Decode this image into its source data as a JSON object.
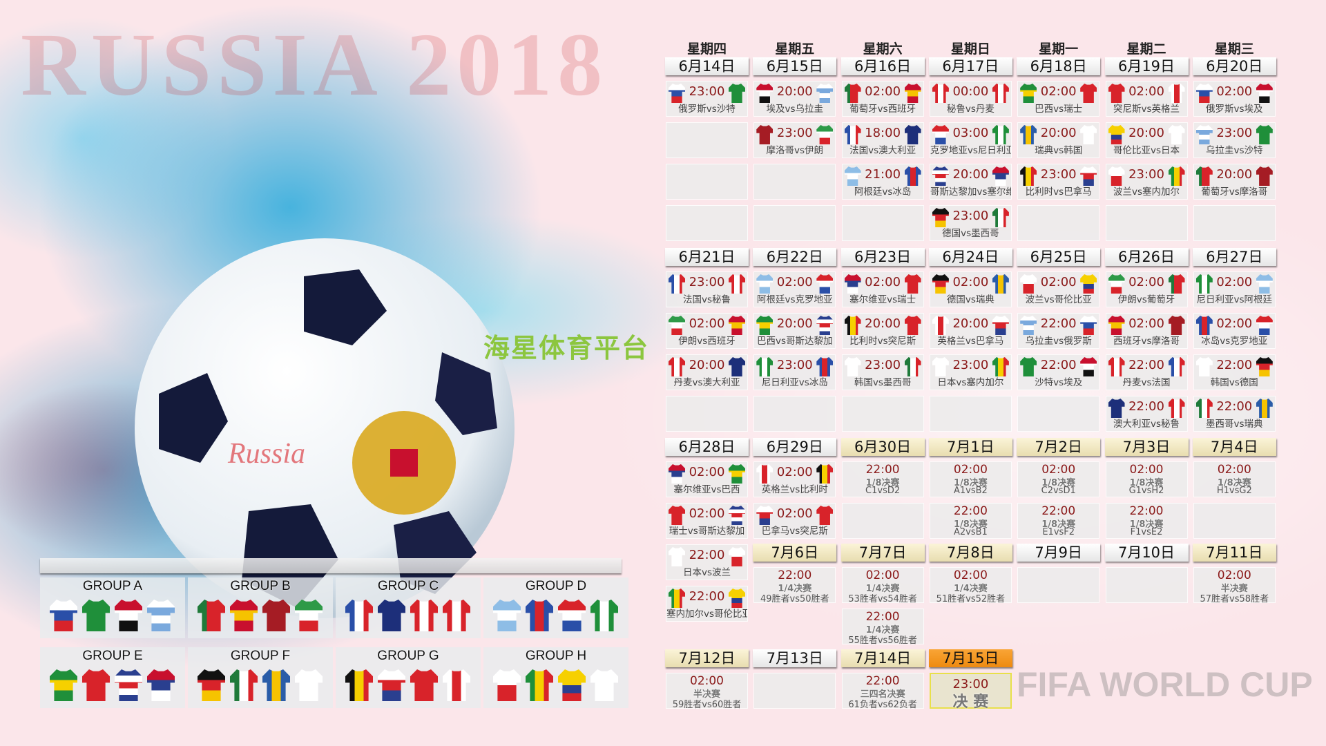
{
  "watermarks": {
    "green": "海星体育平台",
    "fifa": "FIFA WORLD CUP",
    "russia": "RUSSIA 2018"
  },
  "weekdays": [
    "星期四",
    "星期五",
    "星期六",
    "星期日",
    "星期一",
    "星期二",
    "星期三"
  ],
  "colors": {
    "time": "#8b1a1a",
    "knockout_header": "#efe6c0",
    "final_header": "#f39a1c",
    "background": "#fbe6ea"
  },
  "team_colors": {
    "俄罗斯": {
      "d": "h",
      "c": [
        "#ffffff",
        "#2a4fa8",
        "#d8232a"
      ]
    },
    "沙特": {
      "d": "h",
      "c": [
        "#1f8f3a"
      ]
    },
    "埃及": {
      "d": "h",
      "c": [
        "#c8102e",
        "#ffffff",
        "#111111"
      ]
    },
    "乌拉圭": {
      "d": "h",
      "c": [
        "#ffffff",
        "#7aa9dd",
        "#ffffff",
        "#7aa9dd"
      ]
    },
    "葡萄牙": {
      "d": "v",
      "c": [
        "#1f7a3a",
        "#d8232a",
        "#d8232a"
      ]
    },
    "西班牙": {
      "d": "h",
      "c": [
        "#c8102e",
        "#f6c300",
        "#c8102e"
      ]
    },
    "摩洛哥": {
      "d": "h",
      "c": [
        "#a51c24"
      ]
    },
    "伊朗": {
      "d": "h",
      "c": [
        "#2e9a48",
        "#ffffff",
        "#d8232a"
      ]
    },
    "法国": {
      "d": "v",
      "c": [
        "#2a4fa8",
        "#ffffff",
        "#d8232a"
      ]
    },
    "澳大利亚": {
      "d": "h",
      "c": [
        "#1d2f7a"
      ]
    },
    "秘鲁": {
      "d": "v",
      "c": [
        "#d8232a",
        "#ffffff",
        "#d8232a"
      ]
    },
    "丹麦": {
      "d": "v",
      "c": [
        "#d8232a",
        "#ffffff",
        "#d8232a"
      ]
    },
    "阿根廷": {
      "d": "h",
      "c": [
        "#8ebde6",
        "#ffffff",
        "#8ebde6"
      ]
    },
    "冰岛": {
      "d": "v",
      "c": [
        "#2a4fa8",
        "#d8232a",
        "#2a4fa8"
      ]
    },
    "克罗地亚": {
      "d": "h",
      "c": [
        "#d8232a",
        "#ffffff",
        "#2a4fa8"
      ]
    },
    "尼日利亚": {
      "d": "v",
      "c": [
        "#1f8f3a",
        "#ffffff",
        "#1f8f3a"
      ]
    },
    "巴西": {
      "d": "h",
      "c": [
        "#1f8f3a",
        "#f6d000",
        "#1f8f3a"
      ]
    },
    "瑞士": {
      "d": "h",
      "c": [
        "#d8232a"
      ]
    },
    "哥斯达黎加": {
      "d": "h",
      "c": [
        "#2a3f8f",
        "#ffffff",
        "#d8232a",
        "#ffffff",
        "#2a3f8f"
      ]
    },
    "塞尔维亚": {
      "d": "h",
      "c": [
        "#c8102e",
        "#2a3f8f",
        "#ffffff"
      ]
    },
    "德国": {
      "d": "h",
      "c": [
        "#111111",
        "#d8232a",
        "#f6c300"
      ]
    },
    "墨西哥": {
      "d": "v",
      "c": [
        "#1f7a3a",
        "#ffffff",
        "#d8232a"
      ]
    },
    "瑞典": {
      "d": "v",
      "c": [
        "#2a5ca8",
        "#f6c300",
        "#2a5ca8"
      ]
    },
    "韩国": {
      "d": "h",
      "c": [
        "#ffffff"
      ]
    },
    "比利时": {
      "d": "v",
      "c": [
        "#111111",
        "#f6d000",
        "#d8232a"
      ]
    },
    "巴拿马": {
      "d": "h",
      "c": [
        "#ffffff",
        "#d8232a",
        "#2a3f8f"
      ]
    },
    "突尼斯": {
      "d": "h",
      "c": [
        "#d8232a"
      ]
    },
    "英格兰": {
      "d": "v",
      "c": [
        "#ffffff",
        "#d8232a",
        "#ffffff"
      ]
    },
    "波兰": {
      "d": "h",
      "c": [
        "#ffffff",
        "#d8232a"
      ]
    },
    "塞内加尔": {
      "d": "v",
      "c": [
        "#1f8f3a",
        "#f6d000",
        "#d8232a"
      ]
    },
    "哥伦比亚": {
      "d": "h",
      "c": [
        "#f6d000",
        "#f6d000",
        "#2a3f8f",
        "#d8232a"
      ]
    },
    "日本": {
      "d": "h",
      "c": [
        "#ffffff"
      ]
    }
  },
  "days": [
    {
      "date": "6月14日",
      "style": "group",
      "matches": [
        {
          "time": "23:00",
          "home": "俄罗斯",
          "away": "沙特",
          "label": "俄罗斯vs沙特"
        }
      ]
    },
    {
      "date": "6月15日",
      "style": "group",
      "matches": [
        {
          "time": "20:00",
          "home": "埃及",
          "away": "乌拉圭",
          "label": "埃及vs乌拉圭"
        },
        {
          "time": "23:00",
          "home": "摩洛哥",
          "away": "伊朗",
          "label": "摩洛哥vs伊朗"
        }
      ]
    },
    {
      "date": "6月16日",
      "style": "group",
      "matches": [
        {
          "time": "02:00",
          "home": "葡萄牙",
          "away": "西班牙",
          "label": "葡萄牙vs西班牙"
        },
        {
          "time": "18:00",
          "home": "法国",
          "away": "澳大利亚",
          "label": "法国vs澳大利亚"
        },
        {
          "time": "21:00",
          "home": "阿根廷",
          "away": "冰岛",
          "label": "阿根廷vs冰岛"
        }
      ]
    },
    {
      "date": "6月17日",
      "style": "group",
      "matches": [
        {
          "time": "00:00",
          "home": "秘鲁",
          "away": "丹麦",
          "label": "秘鲁vs丹麦"
        },
        {
          "time": "03:00",
          "home": "克罗地亚",
          "away": "尼日利亚",
          "label": "克罗地亚vs尼日利亚"
        },
        {
          "time": "20:00",
          "home": "哥斯达黎加",
          "away": "塞尔维亚",
          "label": "哥斯达黎加vs塞尔维亚"
        },
        {
          "time": "23:00",
          "home": "德国",
          "away": "墨西哥",
          "label": "德国vs墨西哥"
        }
      ]
    },
    {
      "date": "6月18日",
      "style": "group",
      "matches": [
        {
          "time": "02:00",
          "home": "巴西",
          "away": "瑞士",
          "label": "巴西vs瑞士"
        },
        {
          "time": "20:00",
          "home": "瑞典",
          "away": "韩国",
          "label": "瑞典vs韩国"
        },
        {
          "time": "23:00",
          "home": "比利时",
          "away": "巴拿马",
          "label": "比利时vs巴拿马"
        }
      ]
    },
    {
      "date": "6月19日",
      "style": "group",
      "matches": [
        {
          "time": "02:00",
          "home": "突尼斯",
          "away": "英格兰",
          "label": "突尼斯vs英格兰"
        },
        {
          "time": "20:00",
          "home": "哥伦比亚",
          "away": "日本",
          "label": "哥伦比亚vs日本"
        },
        {
          "time": "23:00",
          "home": "波兰",
          "away": "塞内加尔",
          "label": "波兰vs塞内加尔"
        }
      ]
    },
    {
      "date": "6月20日",
      "style": "group",
      "matches": [
        {
          "time": "02:00",
          "home": "俄罗斯",
          "away": "埃及",
          "label": "俄罗斯vs埃及"
        },
        {
          "time": "23:00",
          "home": "乌拉圭",
          "away": "沙特",
          "label": "乌拉圭vs沙特"
        },
        {
          "time": "20:00",
          "home": "葡萄牙",
          "away": "摩洛哥",
          "label": "葡萄牙vs摩洛哥"
        }
      ]
    },
    {
      "date": "6月21日",
      "style": "group",
      "matches": [
        {
          "time": "23:00",
          "home": "法国",
          "away": "秘鲁",
          "label": "法国vs秘鲁"
        },
        {
          "time": "02:00",
          "home": "伊朗",
          "away": "西班牙",
          "label": "伊朗vs西班牙"
        },
        {
          "time": "20:00",
          "home": "丹麦",
          "away": "澳大利亚",
          "label": "丹麦vs澳大利亚"
        }
      ]
    },
    {
      "date": "6月22日",
      "style": "group",
      "matches": [
        {
          "time": "02:00",
          "home": "阿根廷",
          "away": "克罗地亚",
          "label": "阿根廷vs克罗地亚"
        },
        {
          "time": "20:00",
          "home": "巴西",
          "away": "哥斯达黎加",
          "label": "巴西vs哥斯达黎加"
        },
        {
          "time": "23:00",
          "home": "尼日利亚",
          "away": "冰岛",
          "label": "尼日利亚vs冰岛"
        }
      ]
    },
    {
      "date": "6月23日",
      "style": "group",
      "matches": [
        {
          "time": "02:00",
          "home": "塞尔维亚",
          "away": "瑞士",
          "label": "塞尔维亚vs瑞士"
        },
        {
          "time": "20:00",
          "home": "比利时",
          "away": "突尼斯",
          "label": "比利时vs突尼斯"
        },
        {
          "time": "23:00",
          "home": "韩国",
          "away": "墨西哥",
          "label": "韩国vs墨西哥"
        }
      ]
    },
    {
      "date": "6月24日",
      "style": "group",
      "matches": [
        {
          "time": "02:00",
          "home": "德国",
          "away": "瑞典",
          "label": "德国vs瑞典"
        },
        {
          "time": "20:00",
          "home": "英格兰",
          "away": "巴拿马",
          "label": "英格兰vs巴拿马"
        },
        {
          "time": "23:00",
          "home": "日本",
          "away": "塞内加尔",
          "label": "日本vs塞内加尔"
        }
      ]
    },
    {
      "date": "6月25日",
      "style": "group",
      "matches": [
        {
          "time": "02:00",
          "home": "波兰",
          "away": "哥伦比亚",
          "label": "波兰vs哥伦比亚"
        },
        {
          "time": "22:00",
          "home": "乌拉圭",
          "away": "俄罗斯",
          "label": "乌拉圭vs俄罗斯"
        },
        {
          "time": "22:00",
          "home": "沙特",
          "away": "埃及",
          "label": "沙特vs埃及"
        }
      ]
    },
    {
      "date": "6月26日",
      "style": "group",
      "matches": [
        {
          "time": "02:00",
          "home": "伊朗",
          "away": "葡萄牙",
          "label": "伊朗vs葡萄牙"
        },
        {
          "time": "02:00",
          "home": "西班牙",
          "away": "摩洛哥",
          "label": "西班牙vs摩洛哥"
        },
        {
          "time": "22:00",
          "home": "丹麦",
          "away": "法国",
          "label": "丹麦vs法国"
        },
        {
          "time": "22:00",
          "home": "澳大利亚",
          "away": "秘鲁",
          "label": "澳大利亚vs秘鲁"
        }
      ]
    },
    {
      "date": "6月27日",
      "style": "group",
      "matches": [
        {
          "time": "02:00",
          "home": "尼日利亚",
          "away": "阿根廷",
          "label": "尼日利亚vs阿根廷"
        },
        {
          "time": "02:00",
          "home": "冰岛",
          "away": "克罗地亚",
          "label": "冰岛vs克罗地亚"
        },
        {
          "time": "22:00",
          "home": "韩国",
          "away": "德国",
          "label": "韩国vs德国"
        },
        {
          "time": "22:00",
          "home": "墨西哥",
          "away": "瑞典",
          "label": "墨西哥vs瑞典"
        }
      ]
    },
    {
      "date": "6月28日",
      "style": "group",
      "matches": [
        {
          "time": "02:00",
          "home": "塞尔维亚",
          "away": "巴西",
          "label": "塞尔维亚vs巴西"
        },
        {
          "time": "02:00",
          "home": "瑞士",
          "away": "哥斯达黎加",
          "label": "瑞士vs哥斯达黎加"
        },
        {
          "time": "22:00",
          "home": "日本",
          "away": "波兰",
          "label": "日本vs波兰"
        },
        {
          "time": "22:00",
          "home": "塞内加尔",
          "away": "哥伦比亚",
          "label": "塞内加尔vs哥伦比亚"
        }
      ]
    },
    {
      "date": "6月29日",
      "style": "group",
      "matches": [
        {
          "time": "02:00",
          "home": "英格兰",
          "away": "比利时",
          "label": "英格兰vs比利时"
        },
        {
          "time": "02:00",
          "home": "巴拿马",
          "away": "突尼斯",
          "label": "巴拿马vs突尼斯"
        }
      ]
    },
    {
      "date": "6月30日",
      "style": "knockout",
      "matches": [
        {
          "time": "22:00",
          "stage": "1/8决赛",
          "pair": "C1vsD2"
        }
      ]
    },
    {
      "date": "7月1日",
      "style": "knockout",
      "matches": [
        {
          "time": "02:00",
          "stage": "1/8决赛",
          "pair": "A1vsB2"
        },
        {
          "time": "22:00",
          "stage": "1/8决赛",
          "pair": "A2vsB1"
        }
      ]
    },
    {
      "date": "7月2日",
      "style": "knockout",
      "matches": [
        {
          "time": "02:00",
          "stage": "1/8决赛",
          "pair": "C2vsD1"
        },
        {
          "time": "22:00",
          "stage": "1/8决赛",
          "pair": "E1vsF2"
        }
      ]
    },
    {
      "date": "7月3日",
      "style": "knockout",
      "matches": [
        {
          "time": "02:00",
          "stage": "1/8决赛",
          "pair": "G1vsH2"
        },
        {
          "time": "22:00",
          "stage": "1/8决赛",
          "pair": "F1vsE2"
        }
      ]
    },
    {
      "date": "7月4日",
      "style": "knockout",
      "matches": [
        {
          "time": "02:00",
          "stage": "1/8决赛",
          "pair": "H1vsG2"
        }
      ]
    },
    {
      "date": "7月6日",
      "style": "knockout",
      "matches": [
        {
          "time": "22:00",
          "stage": "1/4决赛",
          "pair": "49胜者vs50胜者"
        }
      ]
    },
    {
      "date": "7月7日",
      "style": "knockout",
      "matches": [
        {
          "time": "02:00",
          "stage": "1/4决赛",
          "pair": "53胜者vs54胜者"
        },
        {
          "time": "22:00",
          "stage": "1/4决赛",
          "pair": "55胜者vs56胜者"
        }
      ]
    },
    {
      "date": "7月8日",
      "style": "knockout",
      "matches": [
        {
          "time": "02:00",
          "stage": "1/4决赛",
          "pair": "51胜者vs52胜者"
        }
      ]
    },
    {
      "date": "7月9日",
      "style": "group",
      "matches": []
    },
    {
      "date": "7月10日",
      "style": "group",
      "matches": []
    },
    {
      "date": "7月11日",
      "style": "knockout",
      "matches": [
        {
          "time": "02:00",
          "stage": "半决赛",
          "pair": "57胜者vs58胜者"
        }
      ]
    },
    {
      "date": "7月12日",
      "style": "knockout",
      "matches": [
        {
          "time": "02:00",
          "stage": "半决赛",
          "pair": "59胜者vs60胜者"
        }
      ]
    },
    {
      "date": "7月13日",
      "style": "group",
      "matches": []
    },
    {
      "date": "7月14日",
      "style": "knockout",
      "matches": [
        {
          "time": "22:00",
          "stage": "三四名决赛",
          "pair": "61负者vs62负者"
        }
      ]
    },
    {
      "date": "7月15日",
      "style": "final",
      "matches": [
        {
          "time": "23:00",
          "final": "决 赛"
        }
      ]
    }
  ],
  "groups": [
    {
      "name": "GROUP A",
      "teams": [
        "俄罗斯",
        "沙特",
        "埃及",
        "乌拉圭"
      ]
    },
    {
      "name": "GROUP B",
      "teams": [
        "葡萄牙",
        "西班牙",
        "摩洛哥",
        "伊朗"
      ]
    },
    {
      "name": "GROUP C",
      "teams": [
        "法国",
        "澳大利亚",
        "秘鲁",
        "丹麦"
      ]
    },
    {
      "name": "GROUP D",
      "teams": [
        "阿根廷",
        "冰岛",
        "克罗地亚",
        "尼日利亚"
      ]
    },
    {
      "name": "GROUP E",
      "teams": [
        "巴西",
        "瑞士",
        "哥斯达黎加",
        "塞尔维亚"
      ]
    },
    {
      "name": "GROUP F",
      "teams": [
        "德国",
        "墨西哥",
        "瑞典",
        "韩国"
      ]
    },
    {
      "name": "GROUP G",
      "teams": [
        "比利时",
        "巴拿马",
        "突尼斯",
        "英格兰"
      ]
    },
    {
      "name": "GROUP H",
      "teams": [
        "波兰",
        "塞内加尔",
        "哥伦比亚",
        "日本"
      ]
    }
  ]
}
